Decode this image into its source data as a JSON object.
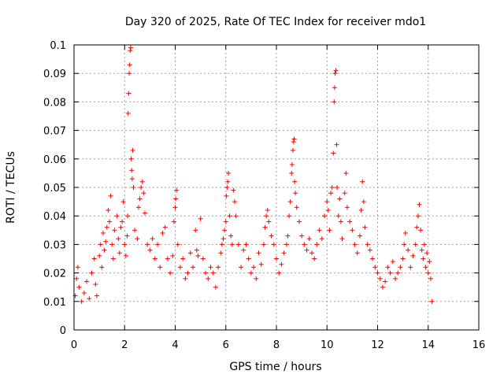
{
  "chart_data": {
    "type": "scatter",
    "title": "Day 320 of 2025, Rate Of TEC Index for receiver mdo1",
    "xlabel": "GPS time / hours",
    "ylabel": "ROTI / TECUs",
    "xlim": [
      0,
      16
    ],
    "ylim": [
      0,
      0.1
    ],
    "xticks": [
      0,
      2,
      4,
      6,
      8,
      10,
      12,
      14,
      16
    ],
    "yticks": [
      0,
      0.01,
      0.02,
      0.03,
      0.04,
      0.05,
      0.06,
      0.07,
      0.08,
      0.09,
      0.1
    ],
    "xtick_labels": [
      "0",
      "2",
      "4",
      "6",
      "8",
      "10",
      "12",
      "14",
      "16"
    ],
    "ytick_labels": [
      "0",
      "0.01",
      "0.02",
      "0.03",
      "0.04",
      "0.05",
      "0.06",
      "0.07",
      "0.08",
      "0.09",
      "0.1"
    ],
    "grid": true,
    "marker": "+",
    "marker_color": "#ff0000",
    "series": [
      {
        "name": "ROTI",
        "points": [
          [
            0.05,
            0.012
          ],
          [
            0.1,
            0.018
          ],
          [
            0.15,
            0.022
          ],
          [
            0.2,
            0.015
          ],
          [
            0.3,
            0.01
          ],
          [
            0.4,
            0.013
          ],
          [
            0.5,
            0.017
          ],
          [
            0.6,
            0.011
          ],
          [
            0.7,
            0.02
          ],
          [
            0.8,
            0.025
          ],
          [
            0.85,
            0.016
          ],
          [
            0.9,
            0.012
          ],
          [
            1.0,
            0.026
          ],
          [
            1.05,
            0.03
          ],
          [
            1.1,
            0.022
          ],
          [
            1.15,
            0.034
          ],
          [
            1.2,
            0.028
          ],
          [
            1.25,
            0.031
          ],
          [
            1.3,
            0.036
          ],
          [
            1.35,
            0.042
          ],
          [
            1.4,
            0.038
          ],
          [
            1.45,
            0.047
          ],
          [
            1.5,
            0.03
          ],
          [
            1.55,
            0.025
          ],
          [
            1.6,
            0.035
          ],
          [
            1.7,
            0.04
          ],
          [
            1.75,
            0.032
          ],
          [
            1.8,
            0.027
          ],
          [
            1.85,
            0.036
          ],
          [
            1.9,
            0.038
          ],
          [
            1.95,
            0.045
          ],
          [
            2.0,
            0.03
          ],
          [
            2.05,
            0.026
          ],
          [
            2.1,
            0.033
          ],
          [
            2.12,
            0.04
          ],
          [
            2.14,
            0.076
          ],
          [
            2.16,
            0.083
          ],
          [
            2.18,
            0.09
          ],
          [
            2.2,
            0.093
          ],
          [
            2.22,
            0.098
          ],
          [
            2.24,
            0.099
          ],
          [
            2.26,
            0.06
          ],
          [
            2.28,
            0.056
          ],
          [
            2.3,
            0.053
          ],
          [
            2.32,
            0.063
          ],
          [
            2.35,
            0.05
          ],
          [
            2.4,
            0.035
          ],
          [
            2.5,
            0.032
          ],
          [
            2.55,
            0.043
          ],
          [
            2.6,
            0.046
          ],
          [
            2.65,
            0.05
          ],
          [
            2.7,
            0.052
          ],
          [
            2.75,
            0.048
          ],
          [
            2.8,
            0.041
          ],
          [
            2.9,
            0.03
          ],
          [
            3.0,
            0.028
          ],
          [
            3.1,
            0.032
          ],
          [
            3.2,
            0.025
          ],
          [
            3.3,
            0.03
          ],
          [
            3.4,
            0.022
          ],
          [
            3.5,
            0.034
          ],
          [
            3.6,
            0.036
          ],
          [
            3.7,
            0.025
          ],
          [
            3.8,
            0.02
          ],
          [
            3.9,
            0.026
          ],
          [
            3.95,
            0.038
          ],
          [
            4.0,
            0.043
          ],
          [
            4.02,
            0.046
          ],
          [
            4.05,
            0.049
          ],
          [
            4.1,
            0.03
          ],
          [
            4.2,
            0.022
          ],
          [
            4.3,
            0.025
          ],
          [
            4.4,
            0.018
          ],
          [
            4.5,
            0.02
          ],
          [
            4.6,
            0.027
          ],
          [
            4.7,
            0.022
          ],
          [
            4.8,
            0.035
          ],
          [
            4.85,
            0.028
          ],
          [
            4.9,
            0.026
          ],
          [
            5.0,
            0.039
          ],
          [
            5.1,
            0.025
          ],
          [
            5.2,
            0.02
          ],
          [
            5.3,
            0.018
          ],
          [
            5.4,
            0.022
          ],
          [
            5.5,
            0.02
          ],
          [
            5.6,
            0.015
          ],
          [
            5.7,
            0.022
          ],
          [
            5.8,
            0.027
          ],
          [
            5.85,
            0.03
          ],
          [
            5.9,
            0.032
          ],
          [
            5.95,
            0.035
          ],
          [
            6.0,
            0.038
          ],
          [
            6.02,
            0.047
          ],
          [
            6.05,
            0.05
          ],
          [
            6.08,
            0.052
          ],
          [
            6.1,
            0.055
          ],
          [
            6.15,
            0.04
          ],
          [
            6.2,
            0.033
          ],
          [
            6.25,
            0.03
          ],
          [
            6.3,
            0.049
          ],
          [
            6.35,
            0.045
          ],
          [
            6.4,
            0.04
          ],
          [
            6.5,
            0.03
          ],
          [
            6.6,
            0.022
          ],
          [
            6.7,
            0.028
          ],
          [
            6.8,
            0.03
          ],
          [
            6.9,
            0.025
          ],
          [
            7.0,
            0.02
          ],
          [
            7.1,
            0.022
          ],
          [
            7.2,
            0.018
          ],
          [
            7.3,
            0.027
          ],
          [
            7.4,
            0.023
          ],
          [
            7.5,
            0.03
          ],
          [
            7.55,
            0.036
          ],
          [
            7.6,
            0.04
          ],
          [
            7.65,
            0.042
          ],
          [
            7.7,
            0.038
          ],
          [
            7.8,
            0.033
          ],
          [
            7.9,
            0.03
          ],
          [
            8.0,
            0.025
          ],
          [
            8.1,
            0.02
          ],
          [
            8.2,
            0.023
          ],
          [
            8.3,
            0.027
          ],
          [
            8.4,
            0.03
          ],
          [
            8.45,
            0.033
          ],
          [
            8.5,
            0.04
          ],
          [
            8.55,
            0.045
          ],
          [
            8.6,
            0.055
          ],
          [
            8.62,
            0.058
          ],
          [
            8.65,
            0.063
          ],
          [
            8.68,
            0.066
          ],
          [
            8.7,
            0.067
          ],
          [
            8.72,
            0.052
          ],
          [
            8.75,
            0.048
          ],
          [
            8.8,
            0.043
          ],
          [
            8.9,
            0.038
          ],
          [
            9.0,
            0.033
          ],
          [
            9.1,
            0.03
          ],
          [
            9.2,
            0.028
          ],
          [
            9.3,
            0.032
          ],
          [
            9.4,
            0.027
          ],
          [
            9.5,
            0.025
          ],
          [
            9.6,
            0.03
          ],
          [
            9.7,
            0.035
          ],
          [
            9.8,
            0.032
          ],
          [
            9.9,
            0.04
          ],
          [
            10.0,
            0.045
          ],
          [
            10.05,
            0.042
          ],
          [
            10.1,
            0.035
          ],
          [
            10.15,
            0.048
          ],
          [
            10.2,
            0.05
          ],
          [
            10.25,
            0.062
          ],
          [
            10.28,
            0.08
          ],
          [
            10.3,
            0.085
          ],
          [
            10.32,
            0.09
          ],
          [
            10.35,
            0.091
          ],
          [
            10.38,
            0.065
          ],
          [
            10.4,
            0.05
          ],
          [
            10.45,
            0.04
          ],
          [
            10.5,
            0.046
          ],
          [
            10.55,
            0.038
          ],
          [
            10.6,
            0.032
          ],
          [
            10.7,
            0.048
          ],
          [
            10.75,
            0.055
          ],
          [
            10.8,
            0.043
          ],
          [
            10.9,
            0.038
          ],
          [
            11.0,
            0.035
          ],
          [
            11.1,
            0.03
          ],
          [
            11.2,
            0.027
          ],
          [
            11.3,
            0.033
          ],
          [
            11.35,
            0.042
          ],
          [
            11.4,
            0.052
          ],
          [
            11.45,
            0.045
          ],
          [
            11.5,
            0.036
          ],
          [
            11.6,
            0.03
          ],
          [
            11.7,
            0.028
          ],
          [
            11.8,
            0.025
          ],
          [
            11.9,
            0.022
          ],
          [
            12.0,
            0.02
          ],
          [
            12.1,
            0.018
          ],
          [
            12.2,
            0.015
          ],
          [
            12.3,
            0.017
          ],
          [
            12.4,
            0.022
          ],
          [
            12.5,
            0.02
          ],
          [
            12.6,
            0.024
          ],
          [
            12.7,
            0.018
          ],
          [
            12.8,
            0.02
          ],
          [
            12.9,
            0.022
          ],
          [
            13.0,
            0.025
          ],
          [
            13.05,
            0.03
          ],
          [
            13.1,
            0.034
          ],
          [
            13.2,
            0.028
          ],
          [
            13.3,
            0.022
          ],
          [
            13.4,
            0.026
          ],
          [
            13.5,
            0.03
          ],
          [
            13.55,
            0.036
          ],
          [
            13.6,
            0.04
          ],
          [
            13.65,
            0.044
          ],
          [
            13.7,
            0.035
          ],
          [
            13.75,
            0.028
          ],
          [
            13.8,
            0.025
          ],
          [
            13.85,
            0.03
          ],
          [
            13.9,
            0.022
          ],
          [
            13.95,
            0.027
          ],
          [
            14.0,
            0.02
          ],
          [
            14.05,
            0.024
          ],
          [
            14.1,
            0.018
          ],
          [
            14.15,
            0.01
          ]
        ]
      }
    ]
  }
}
